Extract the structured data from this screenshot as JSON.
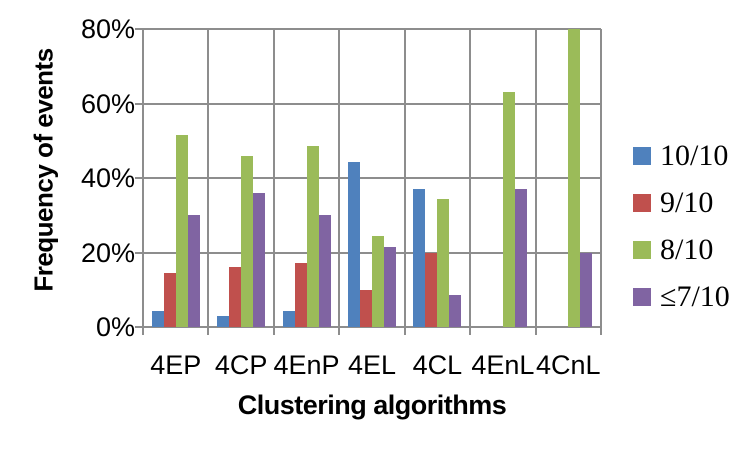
{
  "chart_data": {
    "type": "bar",
    "title": "",
    "xlabel": "Clustering algorithms",
    "ylabel": "Frequency of events",
    "categories": [
      "4EP",
      "4CP",
      "4EnP",
      "4EL",
      "4CL",
      "4EnL",
      "4CnL"
    ],
    "series": [
      {
        "name": "10/10",
        "color": "#4F81BD",
        "values": [
          4.4,
          3.0,
          4.4,
          44.4,
          37.1,
          0,
          0
        ]
      },
      {
        "name": "9/10",
        "color": "#C0504D",
        "values": [
          14.6,
          16.0,
          17.2,
          9.9,
          20.0,
          0,
          0
        ]
      },
      {
        "name": "8/10",
        "color": "#9BBB59",
        "values": [
          51.6,
          45.8,
          48.6,
          24.4,
          34.3,
          63.0,
          80.0
        ]
      },
      {
        "name": "≤7/10",
        "color": "#8064A2",
        "values": [
          30.0,
          36.0,
          30.0,
          21.4,
          8.6,
          37.0,
          20.0
        ]
      }
    ],
    "ylim": [
      0,
      80
    ],
    "yticks": [
      "0%",
      "20%",
      "40%",
      "60%",
      "80%"
    ],
    "ytick_values": [
      0,
      20,
      40,
      60,
      80
    ],
    "grid": true,
    "legend_position": "right"
  },
  "styles": {
    "background": "#ffffff",
    "grid_color": "#8d8d8d",
    "text_color": "#000000"
  }
}
